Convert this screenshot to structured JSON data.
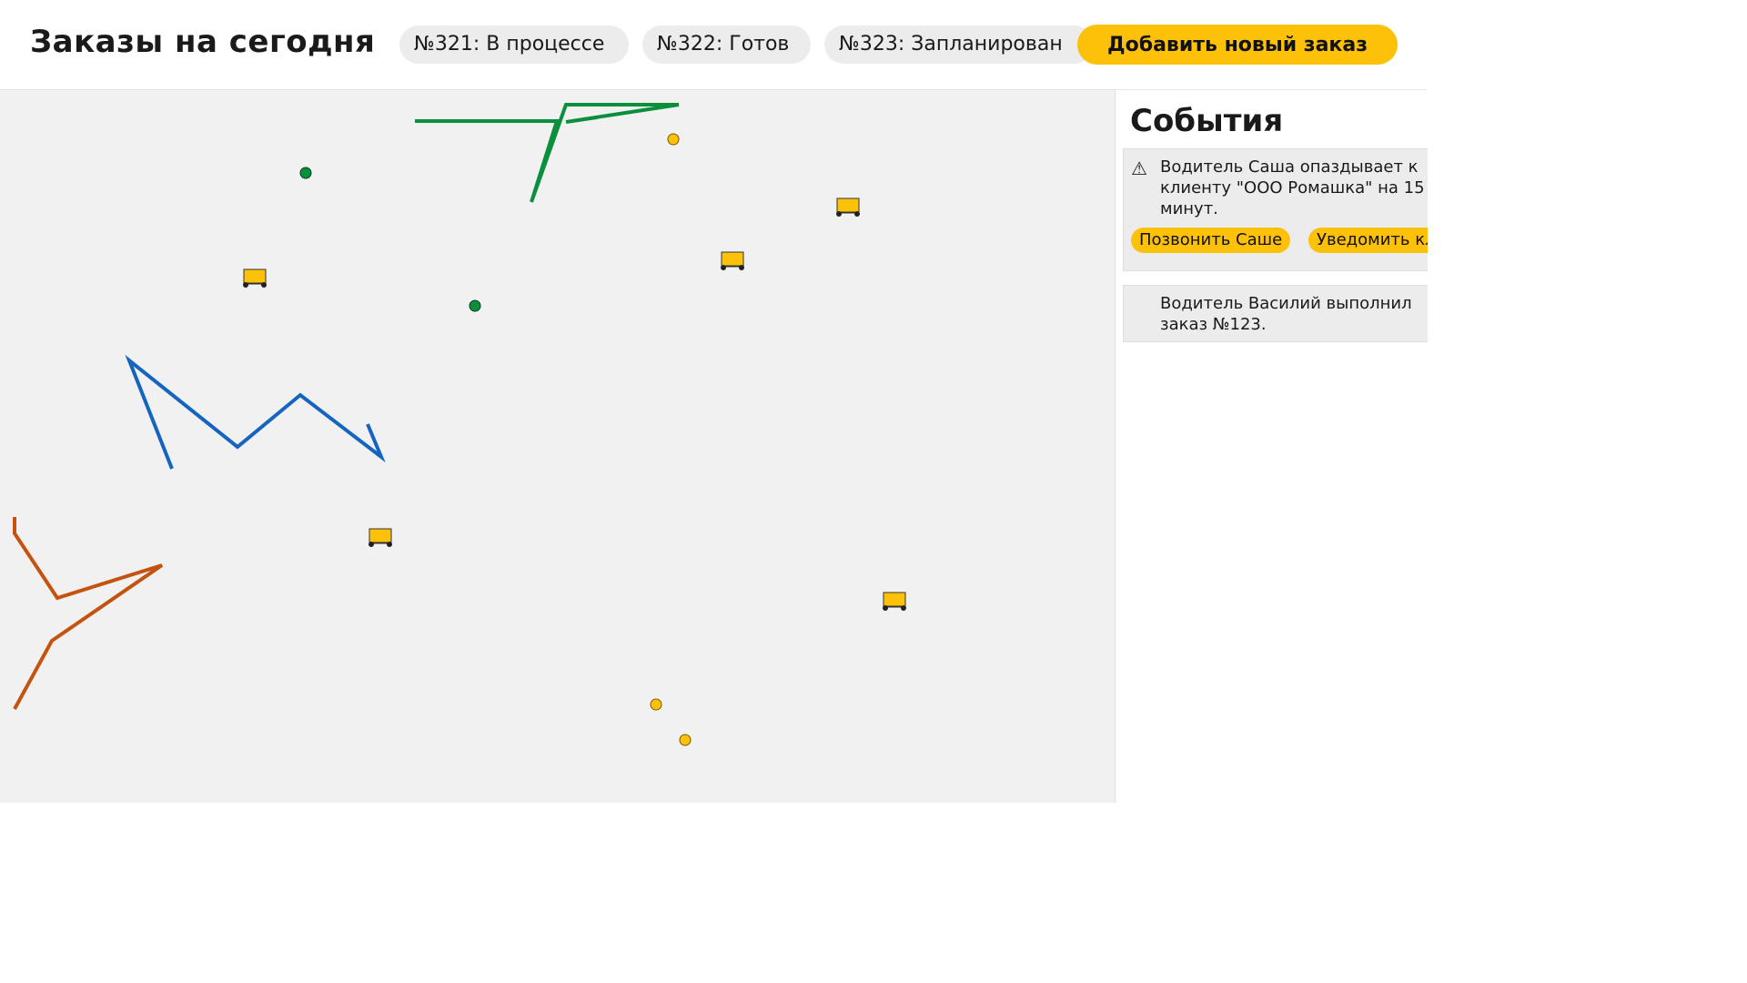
{
  "header": {
    "title": "Заказы на сегодня",
    "orders": [
      {
        "label": "№321: В процессе"
      },
      {
        "label": "№322: Готов"
      },
      {
        "label": "№323: Запланирован"
      }
    ],
    "add_order_label": "Добавить новый заказ"
  },
  "map": {
    "routes": [
      {
        "name": "green-route",
        "color": "#0a8f3c"
      },
      {
        "name": "blue-route",
        "color": "#1565c0"
      },
      {
        "name": "orange-route",
        "color": "#c4530f"
      }
    ],
    "truck_color": "#fdc10a",
    "point_colors": {
      "green": "#0a8f3c",
      "yellow": "#fdc10a"
    }
  },
  "sidebar": {
    "title": "События",
    "events": [
      {
        "icon": "warning-icon",
        "icon_glyph": "⚠",
        "text": "Водитель Саша опаздывает к клиенту \"ООО Ромашка\" на 15 минут.",
        "actions": [
          "Позвонить Саше",
          "Уведомить клиента"
        ]
      },
      {
        "icon": "check-icon",
        "icon_glyph": "",
        "text": "Водитель Василий выполнил заказ №123."
      }
    ]
  }
}
